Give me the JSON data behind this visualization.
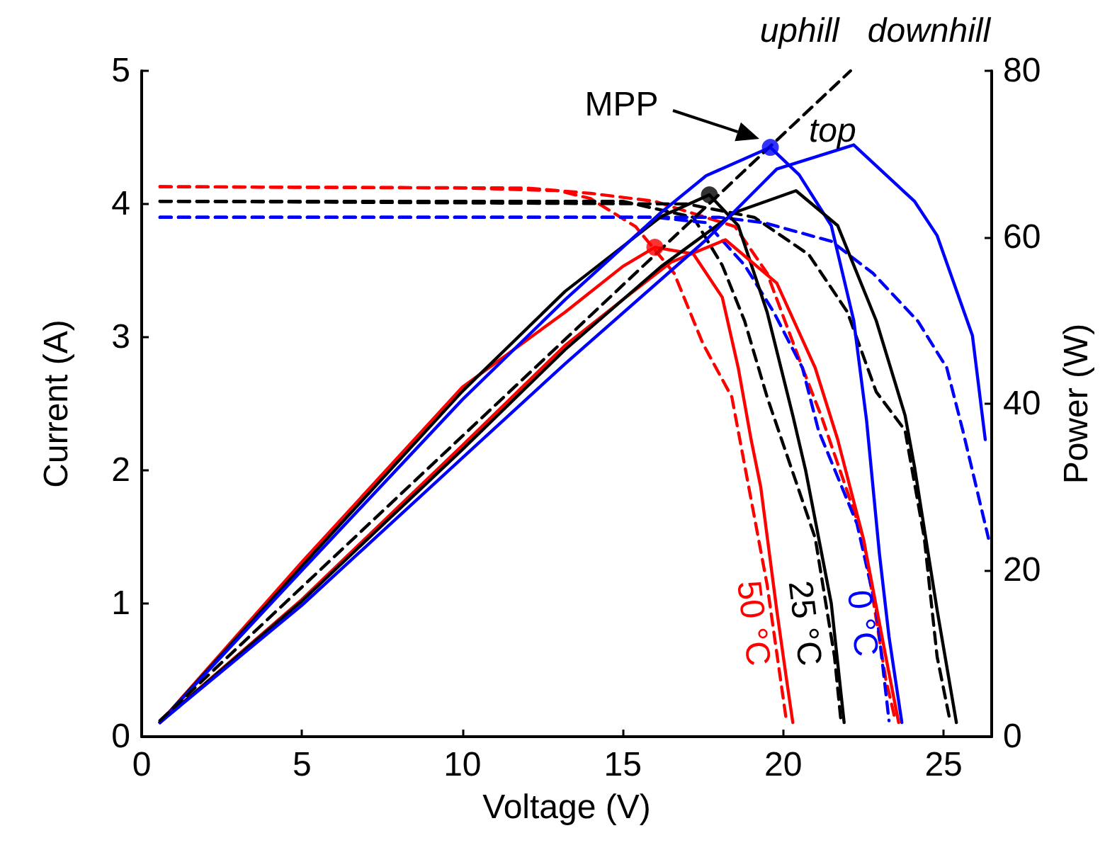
{
  "chart_data": {
    "type": "line",
    "xlabel": "Voltage (V)",
    "ylabel": "Current (A)",
    "y2label": "Power (W)",
    "xlim": [
      0,
      26.5
    ],
    "xticks": [
      0,
      5,
      10,
      15,
      20,
      25
    ],
    "ylim": [
      0,
      5
    ],
    "yticks": [
      0,
      1,
      2,
      3,
      4,
      5
    ],
    "y2lim": [
      0,
      80
    ],
    "y2ticks": [
      0,
      20,
      40,
      60,
      80
    ],
    "grid": false,
    "legend": false,
    "annotations": [
      "MPP",
      {
        "text": "top",
        "x": 22.2,
        "y": 4.44
      },
      "uphill",
      "downhill"
    ],
    "series": [
      {
        "color": "#ff0000",
        "line_style": "dashed",
        "x": [
          0.57,
          10,
          13,
          14,
          15.4,
          16.6,
          17.5,
          18.4,
          19.5,
          20.1
        ],
        "values": [
          4.13,
          4.12,
          4.1,
          4.04,
          3.83,
          3.48,
          2.95,
          2.55,
          1.14,
          0.12
        ]
      },
      {
        "color": "#ff0000",
        "line_style": "dashed",
        "x": [
          0.57,
          12,
          14,
          16,
          18.5,
          19.5,
          20.6,
          21.2,
          22.5,
          23.2,
          23.5
        ],
        "values": [
          4.13,
          4.12,
          4.08,
          4.02,
          3.83,
          3.48,
          2.77,
          2.4,
          1.49,
          0.43,
          0.12
        ]
      },
      {
        "color": "#000000",
        "line_style": "dashed",
        "x": [
          0.57,
          15,
          17.2,
          18.1,
          18.8,
          19.5,
          21.0,
          21.6,
          21.8
        ],
        "values": [
          4.02,
          4.02,
          3.9,
          3.54,
          3.12,
          2.55,
          1.49,
          0.6,
          0.12
        ]
      },
      {
        "color": "#000000",
        "line_style": "dashed",
        "x": [
          0.57,
          17,
          19.1,
          20.8,
          22.0,
          22.9,
          23.8,
          24.4,
          24.8,
          25.2
        ],
        "values": [
          4.02,
          4.0,
          3.9,
          3.62,
          3.19,
          2.59,
          2.3,
          1.49,
          0.6,
          0.12
        ]
      },
      {
        "color": "#0000ff",
        "line_style": "dashed",
        "x": [
          0.57,
          16,
          17.6,
          18.8,
          19.7,
          20.6,
          21.1,
          22.3,
          22.9,
          23.3
        ],
        "values": [
          3.9,
          3.9,
          3.86,
          3.54,
          3.19,
          2.77,
          2.3,
          1.6,
          0.96,
          0.12
        ]
      },
      {
        "color": "#0000ff",
        "line_style": "dashed",
        "x": [
          0.57,
          18,
          19.4,
          21.5,
          22.8,
          24.2,
          25.1,
          25.6,
          26.4
        ],
        "values": [
          3.9,
          3.9,
          3.86,
          3.72,
          3.48,
          3.12,
          2.77,
          2.3,
          1.49
        ]
      },
      {
        "name": "50 °C",
        "color": "#ff0000",
        "line_style": "solid",
        "axis": "y2",
        "x": [
          0.57,
          5,
          10,
          13.2,
          15,
          16.0,
          17.2,
          18.1,
          18.6,
          19.0,
          19.3,
          19.8,
          20.1,
          20.3
        ],
        "values": [
          1.7,
          21,
          42,
          51,
          56.5,
          58.8,
          58,
          52.8,
          44.3,
          35.7,
          30,
          15.2,
          7,
          1.7
        ]
      },
      {
        "name": "25 °C",
        "color": "#000000",
        "line_style": "solid",
        "axis": "y2",
        "x": [
          0.57,
          5,
          10,
          13.2,
          16.2,
          17.7,
          18.6,
          19.5,
          20.3,
          20.7,
          21.2,
          21.5,
          21.9
        ],
        "values": [
          1.7,
          20.5,
          41.5,
          53.5,
          62.5,
          65.1,
          61.4,
          51,
          38.6,
          32,
          22,
          16,
          1.7
        ]
      },
      {
        "name": "0 °C",
        "color": "#0000ff",
        "line_style": "solid",
        "axis": "y2",
        "x": [
          0.57,
          5,
          10,
          13.2,
          16.2,
          17.6,
          19.6,
          20.5,
          21.5,
          22.2,
          22.6,
          23.0,
          23.3,
          23.7
        ],
        "values": [
          1.7,
          20,
          40.5,
          52.5,
          63,
          67.4,
          70.8,
          67.5,
          61.4,
          50,
          38,
          22,
          12,
          1.7
        ]
      },
      {
        "color": "#ff0000",
        "line_style": "solid",
        "axis": "y2",
        "x": [
          0.57,
          5,
          10,
          13.2,
          15,
          16.5,
          18.2,
          19.8,
          21.0,
          21.7,
          22.5,
          23.2,
          23.6
        ],
        "values": [
          1.7,
          16.5,
          35,
          47,
          52.5,
          57,
          59.7,
          54.5,
          44.3,
          35.7,
          23.8,
          9.6,
          1.7
        ]
      },
      {
        "color": "#000000",
        "line_style": "solid",
        "axis": "y2",
        "x": [
          0.57,
          5,
          10,
          13.2,
          16.2,
          18.5,
          20.4,
          21.7,
          22.9,
          23.8,
          24.1,
          24.8,
          25.4
        ],
        "values": [
          1.7,
          16.3,
          34.5,
          46.5,
          56.5,
          63,
          65.6,
          61.4,
          50,
          38.6,
          32.3,
          15.2,
          1.7
        ]
      },
      {
        "color": "#0000ff",
        "line_style": "solid",
        "axis": "y2",
        "x": [
          0.57,
          5,
          10,
          13.2,
          17.6,
          19.8,
          22.2,
          24.1,
          24.8,
          25.9,
          26.3
        ],
        "values": [
          1.7,
          15.8,
          33.5,
          44.8,
          59.7,
          68.2,
          71.1,
          64.3,
          60.2,
          48.2,
          35.7
        ]
      },
      {
        "color": "#000000",
        "line_style": "dashed",
        "x": [
          0.57,
          22.1
        ],
        "values": [
          0.12,
          5.0
        ]
      },
      {
        "type": "scatter",
        "marker": "circle",
        "axis": "y2",
        "colors": [
          "#ff0000",
          "#000000",
          "#0000ff"
        ],
        "x": [
          16.0,
          17.7,
          19.6
        ],
        "values": [
          58.8,
          65.1,
          70.8
        ]
      }
    ]
  }
}
